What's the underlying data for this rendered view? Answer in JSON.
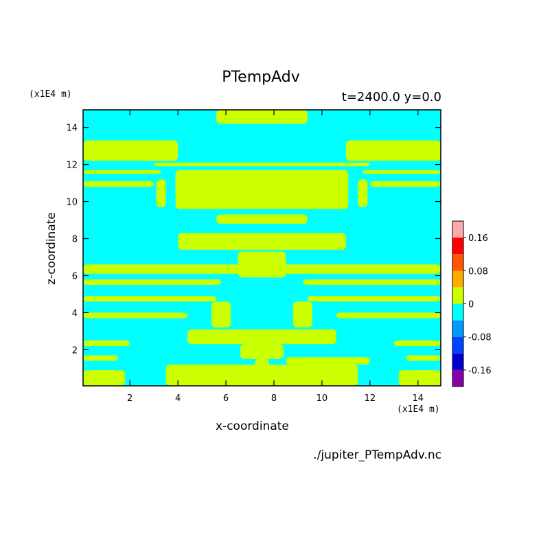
{
  "chart_data": {
    "type": "heatmap",
    "title": "PTempAdv",
    "subtitle": "t=2400.0 y=0.0",
    "xlabel": "x-coordinate",
    "ylabel": "z-coordinate",
    "x_unit_label": "(x1E4 m)",
    "y_unit_label": "(x1E4 m)",
    "source_label": "./jupiter_PTempAdv.nc",
    "xlim": [
      0.05,
      14.95
    ],
    "ylim": [
      0.05,
      14.95
    ],
    "x_ticks": [
      2,
      4,
      6,
      8,
      10,
      12,
      14
    ],
    "y_ticks": [
      2,
      4,
      6,
      8,
      10,
      12,
      14
    ],
    "x_tick_labels": [
      "2",
      "4",
      "6",
      "8",
      "10",
      "12",
      "14"
    ],
    "y_tick_labels": [
      "2",
      "4",
      "6",
      "8",
      "10",
      "12",
      "14"
    ],
    "colorbar": {
      "levels": [
        -0.2,
        -0.16,
        -0.12,
        -0.08,
        -0.04,
        0,
        0.04,
        0.08,
        0.12,
        0.16,
        0.2
      ],
      "colors": [
        "#8800aa",
        "#0000cc",
        "#0044ff",
        "#0099ff",
        "#00ffff",
        "#ccff00",
        "#ffaa00",
        "#ff5500",
        "#ff0000",
        "#ffaaaa"
      ],
      "tick_values": [
        0.16,
        0.08,
        0,
        -0.08,
        -0.16
      ],
      "tick_labels": [
        "0.16",
        "0.08",
        "0",
        "-0.08",
        "-0.16"
      ]
    },
    "background_value_color": "#00ffff",
    "feature_color": "#ccff00",
    "bands": [
      {
        "xmin": 5.6,
        "xmax": 9.4,
        "zmin": 14.2,
        "zmax": 14.95
      },
      {
        "xmin": 0.05,
        "xmax": 4.0,
        "zmin": 12.2,
        "zmax": 13.3
      },
      {
        "xmin": 11.0,
        "xmax": 14.95,
        "zmin": 12.2,
        "zmax": 13.3
      },
      {
        "xmin": 3.0,
        "xmax": 12.0,
        "zmin": 11.9,
        "zmax": 12.1
      },
      {
        "xmin": 0.05,
        "xmax": 3.3,
        "zmin": 11.5,
        "zmax": 11.7
      },
      {
        "xmin": 11.7,
        "xmax": 14.95,
        "zmin": 11.5,
        "zmax": 11.7
      },
      {
        "xmin": 0.05,
        "xmax": 3.0,
        "zmin": 10.8,
        "zmax": 11.1
      },
      {
        "xmin": 12.0,
        "xmax": 14.95,
        "zmin": 10.8,
        "zmax": 11.1
      },
      {
        "xmin": 3.9,
        "xmax": 11.1,
        "zmin": 9.6,
        "zmax": 11.7
      },
      {
        "xmin": 3.1,
        "xmax": 3.5,
        "zmin": 9.7,
        "zmax": 11.2
      },
      {
        "xmin": 11.5,
        "xmax": 11.9,
        "zmin": 9.7,
        "zmax": 11.2
      },
      {
        "xmin": 5.6,
        "xmax": 9.4,
        "zmin": 8.8,
        "zmax": 9.3
      },
      {
        "xmin": 4.0,
        "xmax": 11.0,
        "zmin": 7.4,
        "zmax": 8.3
      },
      {
        "xmin": 0.05,
        "xmax": 14.95,
        "zmin": 6.1,
        "zmax": 6.6
      },
      {
        "xmin": 0.05,
        "xmax": 5.8,
        "zmin": 5.5,
        "zmax": 5.8
      },
      {
        "xmin": 9.2,
        "xmax": 14.95,
        "zmin": 5.5,
        "zmax": 5.8
      },
      {
        "xmin": 0.05,
        "xmax": 5.6,
        "zmin": 4.6,
        "zmax": 4.9
      },
      {
        "xmin": 9.4,
        "xmax": 14.95,
        "zmin": 4.6,
        "zmax": 4.9
      },
      {
        "xmin": 0.05,
        "xmax": 4.4,
        "zmin": 3.7,
        "zmax": 4.0
      },
      {
        "xmin": 10.6,
        "xmax": 14.95,
        "zmin": 3.7,
        "zmax": 4.0
      },
      {
        "xmin": 0.05,
        "xmax": 2.0,
        "zmin": 2.2,
        "zmax": 2.5
      },
      {
        "xmin": 13.0,
        "xmax": 14.95,
        "zmin": 2.2,
        "zmax": 2.5
      },
      {
        "xmin": 0.05,
        "xmax": 1.5,
        "zmin": 1.4,
        "zmax": 1.7
      },
      {
        "xmin": 13.5,
        "xmax": 14.95,
        "zmin": 1.4,
        "zmax": 1.7
      },
      {
        "xmin": 0.05,
        "xmax": 1.8,
        "zmin": 0.05,
        "zmax": 0.9
      },
      {
        "xmin": 13.2,
        "xmax": 14.95,
        "zmin": 0.05,
        "zmax": 0.9
      },
      {
        "xmin": 3.5,
        "xmax": 11.5,
        "zmin": 0.05,
        "zmax": 1.2
      },
      {
        "xmin": 8.5,
        "xmax": 12.0,
        "zmin": 1.2,
        "zmax": 1.6
      },
      {
        "xmin": 6.5,
        "xmax": 8.5,
        "zmin": 5.9,
        "zmax": 7.3
      },
      {
        "xmin": 5.4,
        "xmax": 6.2,
        "zmin": 3.2,
        "zmax": 4.6
      },
      {
        "xmin": 8.8,
        "xmax": 9.6,
        "zmin": 3.2,
        "zmax": 4.6
      },
      {
        "xmin": 4.4,
        "xmax": 10.6,
        "zmin": 2.3,
        "zmax": 3.1
      },
      {
        "xmin": 6.6,
        "xmax": 8.4,
        "zmin": 1.5,
        "zmax": 2.3
      },
      {
        "xmin": 7.2,
        "xmax": 7.8,
        "zmin": 0.3,
        "zmax": 1.5
      }
    ]
  }
}
